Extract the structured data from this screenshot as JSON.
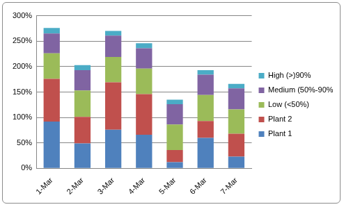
{
  "chart_data": {
    "type": "bar",
    "categories": [
      "1-Mar",
      "2-Mar",
      "3-Mar",
      "4-Mar",
      "5-Mar",
      "6-Mar",
      "7-Mar"
    ],
    "series": [
      {
        "name": "Plant 1",
        "color": "#4f81bd",
        "values": [
          92,
          49,
          76,
          66,
          12,
          60,
          23
        ]
      },
      {
        "name": "Plant 2",
        "color": "#c0504d",
        "values": [
          84,
          52,
          93,
          80,
          24,
          33,
          45
        ]
      },
      {
        "name": "Low (<50%)",
        "color": "#9bbb59",
        "values": [
          50,
          52,
          50,
          50,
          50,
          51,
          48
        ]
      },
      {
        "name": "Medium (50%-90%)",
        "color": "#8064a2",
        "values": [
          39,
          40,
          42,
          40,
          40,
          40,
          41
        ]
      },
      {
        "name": "High (>)90%",
        "color": "#4bacc6",
        "values": [
          11,
          10,
          9,
          10,
          9,
          9,
          9
        ]
      }
    ],
    "stacked": true,
    "ylim": [
      0,
      300
    ],
    "yticks": [
      {
        "value": 0,
        "label": "0%"
      },
      {
        "value": 50,
        "label": "50%"
      },
      {
        "value": 100,
        "label": "100%"
      },
      {
        "value": 150,
        "label": "150%"
      },
      {
        "value": 200,
        "label": "200%"
      },
      {
        "value": 250,
        "label": "250%"
      },
      {
        "value": 300,
        "label": "300%"
      }
    ],
    "grid": true,
    "legend": "right"
  }
}
